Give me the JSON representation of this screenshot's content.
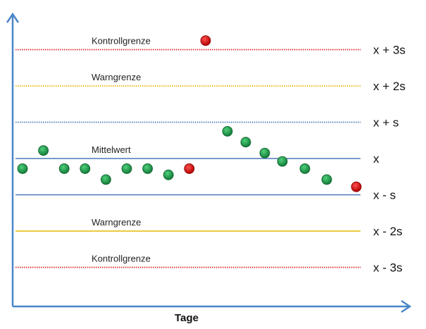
{
  "chart_data": {
    "type": "scatter",
    "xlabel": "Tage",
    "ylabel": "",
    "ylim": [
      -4,
      3.5
    ],
    "xlim": [
      0,
      23
    ],
    "grid": false,
    "lines": [
      {
        "y": 3,
        "label": "Kontrollgrenze",
        "side_label": "x + 3s",
        "color": "#dd2222",
        "style": "dotted"
      },
      {
        "y": 2,
        "label": "Warngrenze",
        "side_label": "x + 2s",
        "color": "#e6b800",
        "style": "dotted"
      },
      {
        "y": 1,
        "label": "",
        "side_label": "x + s",
        "color": "#4a7ab8",
        "style": "dotted"
      },
      {
        "y": 0,
        "label": "Mittelwert",
        "side_label": "x",
        "color": "#4a7ab8",
        "style": "solid"
      },
      {
        "y": -1,
        "label": "",
        "side_label": "x - s",
        "color": "#4a7ab8",
        "style": "solid"
      },
      {
        "y": -2,
        "label": "Warngrenze",
        "side_label": "x - 2s",
        "color": "#e6b800",
        "style": "solid"
      },
      {
        "y": -3,
        "label": "Kontrollgrenze",
        "side_label": "x - 3s",
        "color": "#dd2222",
        "style": "dotted"
      }
    ],
    "colors": {
      "in_control": "#1a9b4a",
      "out_of_control": "#e01010"
    },
    "points": [
      {
        "x": 1,
        "y": -0.28,
        "status": "in_control"
      },
      {
        "x": 2,
        "y": 0.22,
        "status": "in_control"
      },
      {
        "x": 3,
        "y": -0.28,
        "status": "in_control"
      },
      {
        "x": 4,
        "y": -0.28,
        "status": "in_control"
      },
      {
        "x": 5,
        "y": -0.58,
        "status": "in_control"
      },
      {
        "x": 6,
        "y": -0.28,
        "status": "in_control"
      },
      {
        "x": 7,
        "y": -0.28,
        "status": "in_control"
      },
      {
        "x": 8,
        "y": -0.45,
        "status": "in_control"
      },
      {
        "x": 9,
        "y": -0.28,
        "status": "out_of_control"
      },
      {
        "x": 10,
        "y": 3.25,
        "status": "out_of_control"
      },
      {
        "x": 11,
        "y": 0.75,
        "status": "in_control"
      },
      {
        "x": 12,
        "y": 0.45,
        "status": "in_control"
      },
      {
        "x": 13,
        "y": 0.15,
        "status": "in_control"
      },
      {
        "x": 14,
        "y": -0.08,
        "status": "in_control"
      },
      {
        "x": 15,
        "y": -0.28,
        "status": "in_control"
      },
      {
        "x": 16,
        "y": -0.58,
        "status": "in_control"
      },
      {
        "x": 17,
        "y": -0.78,
        "status": "out_of_control"
      }
    ]
  }
}
